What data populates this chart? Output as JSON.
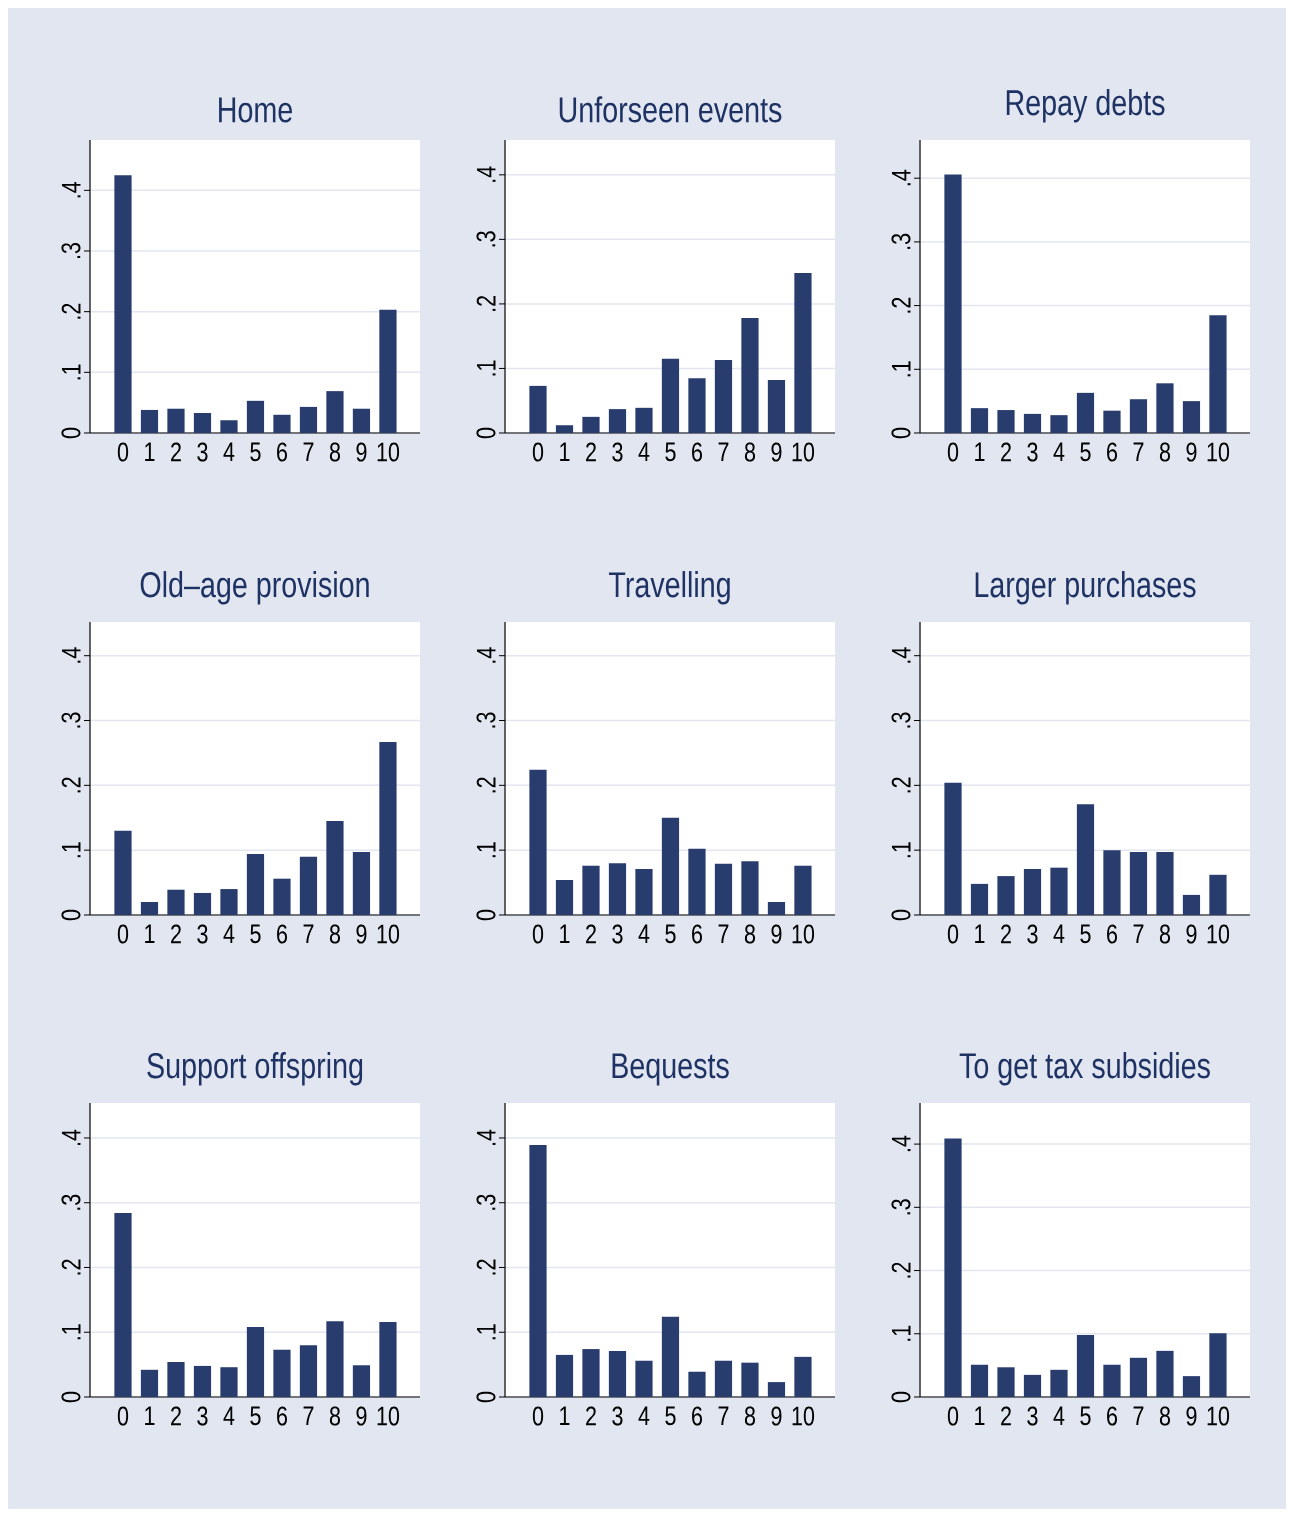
{
  "chart_data": [
    {
      "type": "bar",
      "title": "Home",
      "categories": [
        "0",
        "1",
        "2",
        "3",
        "4",
        "5",
        "6",
        "7",
        "8",
        "9",
        "10"
      ],
      "values": [
        0.425,
        0.038,
        0.04,
        0.033,
        0.021,
        0.053,
        0.03,
        0.043,
        0.069,
        0.04,
        0.203
      ],
      "color": "#283c6e",
      "ylim": [
        0,
        0.483
      ],
      "yticks": [
        0,
        {
          "value": 0.1,
          "label": ".1"
        },
        {
          "value": 0.2,
          "label": ".2"
        },
        {
          "value": 0.3,
          "label": ".3"
        },
        {
          "value": 0.4,
          "label": ".4"
        }
      ],
      "grid": "y"
    },
    {
      "type": "bar",
      "title": "Unforseen events",
      "categories": [
        "0",
        "1",
        "2",
        "3",
        "4",
        "5",
        "6",
        "7",
        "8",
        "9",
        "10"
      ],
      "values": [
        0.073,
        0.012,
        0.025,
        0.037,
        0.039,
        0.115,
        0.085,
        0.113,
        0.178,
        0.082,
        0.248
      ],
      "color": "#283c6e",
      "ylim": [
        0,
        0.454
      ],
      "yticks": [
        0,
        {
          "value": 0.1,
          "label": ".1"
        },
        {
          "value": 0.2,
          "label": ".2"
        },
        {
          "value": 0.3,
          "label": ".3"
        },
        {
          "value": 0.4,
          "label": ".4"
        }
      ],
      "grid": "y"
    },
    {
      "type": "bar",
      "title": "Repay debts",
      "categories": [
        "0",
        "1",
        "2",
        "3",
        "4",
        "5",
        "6",
        "7",
        "8",
        "9",
        "10"
      ],
      "values": [
        0.406,
        0.039,
        0.036,
        0.03,
        0.028,
        0.063,
        0.035,
        0.053,
        0.078,
        0.05,
        0.185
      ],
      "color": "#283c6e",
      "ylim": [
        0,
        0.46
      ],
      "yticks": [
        0,
        {
          "value": 0.1,
          "label": ".1"
        },
        {
          "value": 0.2,
          "label": ".2"
        },
        {
          "value": 0.3,
          "label": ".3"
        },
        {
          "value": 0.4,
          "label": ".4"
        }
      ],
      "grid": "y"
    },
    {
      "type": "bar",
      "title": "Old–age provision",
      "categories": [
        "0",
        "1",
        "2",
        "3",
        "4",
        "5",
        "6",
        "7",
        "8",
        "9",
        "10"
      ],
      "values": [
        0.13,
        0.02,
        0.039,
        0.034,
        0.04,
        0.094,
        0.056,
        0.09,
        0.145,
        0.097,
        0.267
      ],
      "color": "#283c6e",
      "ylim": [
        0,
        0.452
      ],
      "yticks": [
        0,
        {
          "value": 0.1,
          "label": ".1"
        },
        {
          "value": 0.2,
          "label": ".2"
        },
        {
          "value": 0.3,
          "label": ".3"
        },
        {
          "value": 0.4,
          "label": ".4"
        }
      ],
      "grid": "y"
    },
    {
      "type": "bar",
      "title": "Travelling",
      "categories": [
        "0",
        "1",
        "2",
        "3",
        "4",
        "5",
        "6",
        "7",
        "8",
        "9",
        "10"
      ],
      "values": [
        0.224,
        0.054,
        0.076,
        0.08,
        0.071,
        0.15,
        0.102,
        0.079,
        0.083,
        0.02,
        0.076
      ],
      "color": "#283c6e",
      "ylim": [
        0,
        0.452
      ],
      "yticks": [
        0,
        {
          "value": 0.1,
          "label": ".1"
        },
        {
          "value": 0.2,
          "label": ".2"
        },
        {
          "value": 0.3,
          "label": ".3"
        },
        {
          "value": 0.4,
          "label": ".4"
        }
      ],
      "grid": "y"
    },
    {
      "type": "bar",
      "title": "Larger purchases",
      "categories": [
        "0",
        "1",
        "2",
        "3",
        "4",
        "5",
        "6",
        "7",
        "8",
        "9",
        "10"
      ],
      "values": [
        0.204,
        0.048,
        0.06,
        0.071,
        0.073,
        0.171,
        0.1,
        0.097,
        0.097,
        0.031,
        0.062
      ],
      "color": "#283c6e",
      "ylim": [
        0,
        0.452
      ],
      "yticks": [
        0,
        {
          "value": 0.1,
          "label": ".1"
        },
        {
          "value": 0.2,
          "label": ".2"
        },
        {
          "value": 0.3,
          "label": ".3"
        },
        {
          "value": 0.4,
          "label": ".4"
        }
      ],
      "grid": "y"
    },
    {
      "type": "bar",
      "title": "Support offspring",
      "categories": [
        "0",
        "1",
        "2",
        "3",
        "4",
        "5",
        "6",
        "7",
        "8",
        "9",
        "10"
      ],
      "values": [
        0.284,
        0.042,
        0.054,
        0.048,
        0.046,
        0.108,
        0.073,
        0.08,
        0.117,
        0.049,
        0.116
      ],
      "color": "#283c6e",
      "ylim": [
        0,
        0.454
      ],
      "yticks": [
        0,
        {
          "value": 0.1,
          "label": ".1"
        },
        {
          "value": 0.2,
          "label": ".2"
        },
        {
          "value": 0.3,
          "label": ".3"
        },
        {
          "value": 0.4,
          "label": ".4"
        }
      ],
      "grid": "y"
    },
    {
      "type": "bar",
      "title": "Bequests",
      "categories": [
        "0",
        "1",
        "2",
        "3",
        "4",
        "5",
        "6",
        "7",
        "8",
        "9",
        "10"
      ],
      "values": [
        0.389,
        0.065,
        0.074,
        0.071,
        0.056,
        0.124,
        0.039,
        0.056,
        0.053,
        0.023,
        0.062
      ],
      "color": "#283c6e",
      "ylim": [
        0,
        0.454
      ],
      "yticks": [
        0,
        {
          "value": 0.1,
          "label": ".1"
        },
        {
          "value": 0.2,
          "label": ".2"
        },
        {
          "value": 0.3,
          "label": ".3"
        },
        {
          "value": 0.4,
          "label": ".4"
        }
      ],
      "grid": "y"
    },
    {
      "type": "bar",
      "title": "To get tax subsidies",
      "categories": [
        "0",
        "1",
        "2",
        "3",
        "4",
        "5",
        "6",
        "7",
        "8",
        "9",
        "10"
      ],
      "values": [
        0.409,
        0.051,
        0.047,
        0.035,
        0.043,
        0.098,
        0.051,
        0.062,
        0.073,
        0.033,
        0.101
      ],
      "color": "#283c6e",
      "ylim": [
        0,
        0.465
      ],
      "yticks": [
        0,
        {
          "value": 0.1,
          "label": ".1"
        },
        {
          "value": 0.2,
          "label": ".2"
        },
        {
          "value": 0.3,
          "label": ".3"
        },
        {
          "value": 0.4,
          "label": ".4"
        }
      ],
      "grid": "y"
    }
  ]
}
